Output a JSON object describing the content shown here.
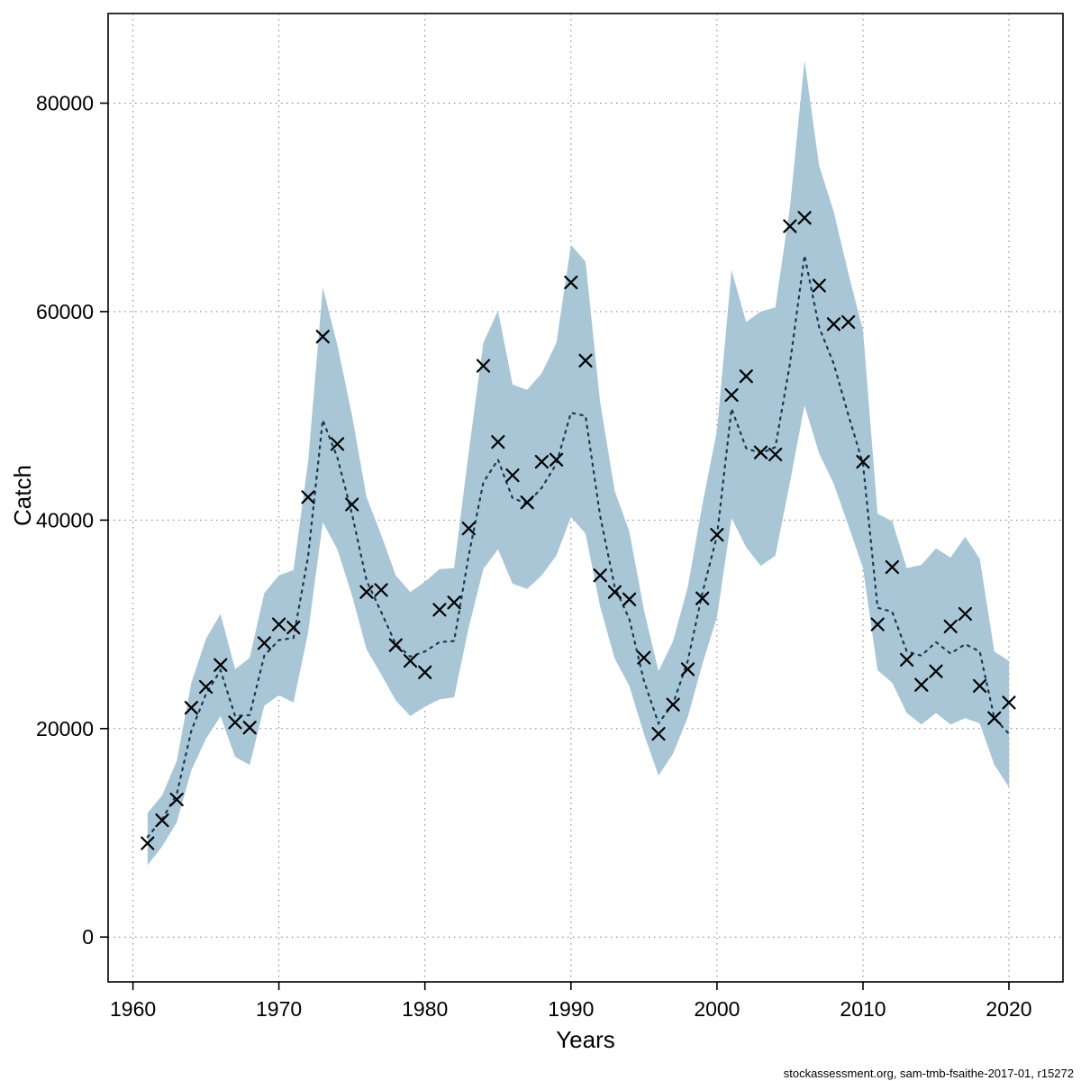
{
  "footer": "stockassessment.org, sam-tmb-fsaithe-2017-01, r15272",
  "chart_data": {
    "type": "line",
    "title": "",
    "xlabel": "Years",
    "ylabel": "Catch",
    "legend_position": "none",
    "grid": true,
    "xlim": [
      1958.3,
      2023.7
    ],
    "ylim": [
      -4300,
      88600
    ],
    "x_ticks": [
      1960,
      1970,
      1980,
      1990,
      2000,
      2010,
      2020
    ],
    "y_ticks": [
      0,
      20000,
      40000,
      60000,
      80000
    ],
    "band_color": "#a8c6d6",
    "line_color": "#1a3a52",
    "marker_color": "#000000",
    "grid_color": "#7a7a7a",
    "years": [
      1961,
      1962,
      1963,
      1964,
      1965,
      1966,
      1967,
      1968,
      1969,
      1970,
      1971,
      1972,
      1973,
      1974,
      1975,
      1976,
      1977,
      1978,
      1979,
      1980,
      1981,
      1982,
      1983,
      1984,
      1985,
      1986,
      1987,
      1988,
      1989,
      1990,
      1991,
      1992,
      1993,
      1994,
      1995,
      1996,
      1997,
      1998,
      1999,
      2000,
      2001,
      2002,
      2003,
      2004,
      2005,
      2006,
      2007,
      2008,
      2009,
      2010,
      2011,
      2012,
      2013,
      2014,
      2015,
      2016,
      2017,
      2018,
      2019,
      2020
    ],
    "series": [
      {
        "name": "observed-catch-markers",
        "style": "x-marker",
        "values": [
          9000,
          11200,
          13200,
          22000,
          24000,
          26100,
          20600,
          20100,
          28200,
          30000,
          29700,
          42200,
          57600,
          47300,
          41500,
          33100,
          33300,
          28000,
          26500,
          25400,
          31400,
          32100,
          39200,
          54800,
          47500,
          44300,
          41700,
          45600,
          45800,
          62800,
          55300,
          34700,
          33100,
          32400,
          26800,
          19500,
          22300,
          25700,
          32500,
          38600,
          52000,
          53800,
          46500,
          46300,
          68200,
          69000,
          62500,
          58800,
          59000,
          45600,
          30000,
          35500,
          26600,
          24200,
          25500,
          29800,
          31000,
          24100,
          21000,
          22500
        ]
      },
      {
        "name": "estimated-catch-line",
        "style": "dotted-line",
        "values": [
          9600,
          11300,
          13700,
          19800,
          23300,
          25600,
          21200,
          21300,
          27000,
          28500,
          28700,
          36500,
          49600,
          46000,
          40600,
          34200,
          31200,
          28100,
          26900,
          27400,
          28300,
          28400,
          36600,
          43600,
          45800,
          42100,
          41600,
          43100,
          45400,
          50300,
          50000,
          40400,
          33600,
          30500,
          24600,
          20500,
          22400,
          26500,
          33000,
          38500,
          50700,
          46900,
          46400,
          47000,
          55000,
          65400,
          58500,
          55000,
          50100,
          45400,
          31600,
          31200,
          27400,
          27000,
          28300,
          27200,
          28100,
          27400,
          21000,
          19500
        ]
      }
    ],
    "confidence_band": {
      "lower": [
        6900,
        8700,
        11000,
        16000,
        19000,
        21200,
        17300,
        16500,
        22200,
        23200,
        22500,
        29200,
        39800,
        37200,
        32800,
        27600,
        25200,
        22700,
        21200,
        22100,
        22800,
        23000,
        29700,
        35300,
        37200,
        33900,
        33400,
        34700,
        36600,
        40300,
        38700,
        31700,
        26700,
        24100,
        19500,
        15500,
        17600,
        21100,
        26200,
        30700,
        40200,
        37400,
        35600,
        36600,
        43600,
        51000,
        46400,
        43500,
        39500,
        35400,
        25600,
        24400,
        21500,
        20400,
        21500,
        20400,
        21000,
        20500,
        16500,
        14400
      ],
      "upper": [
        11900,
        13600,
        16900,
        24400,
        28600,
        31000,
        25700,
        26800,
        33000,
        34700,
        35200,
        45600,
        62300,
        56800,
        50100,
        42200,
        38600,
        34700,
        33100,
        34100,
        35300,
        35400,
        46500,
        57000,
        60100,
        53000,
        52500,
        54100,
        57000,
        66400,
        64800,
        51300,
        42800,
        38900,
        31400,
        25500,
        28400,
        33600,
        41500,
        48600,
        64000,
        59000,
        60000,
        60400,
        70000,
        84100,
        74000,
        69600,
        63700,
        58200,
        40600,
        39900,
        35400,
        35700,
        37300,
        36400,
        38400,
        36300,
        27400,
        26500
      ]
    }
  }
}
